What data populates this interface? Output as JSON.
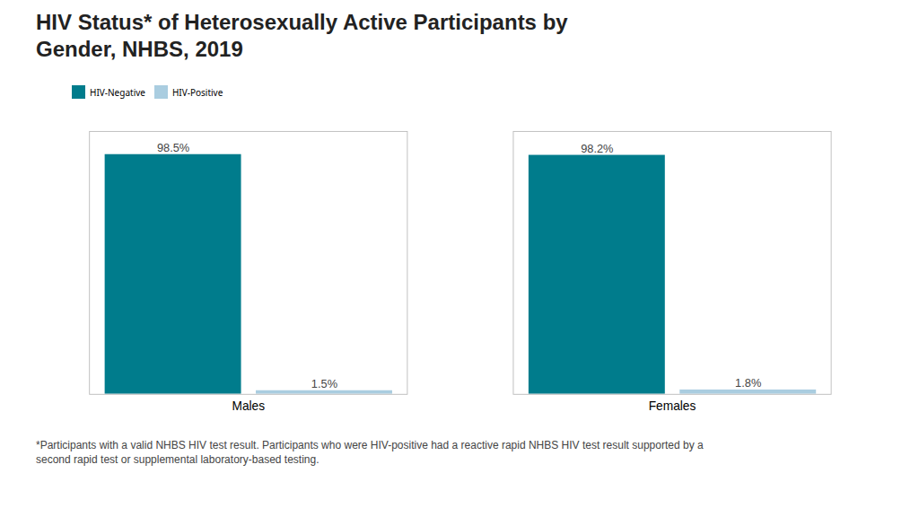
{
  "chart_data": {
    "type": "bar",
    "title": "HIV Status* of Heterosexually Active Participants by\nGender, NHBS, 2019",
    "categories": [
      "Males",
      "Females"
    ],
    "series": [
      {
        "name": "HIV-Negative",
        "color": "#007C8C",
        "values": [
          98.5,
          98.2
        ],
        "value_labels": [
          "98.5%",
          "98.2%"
        ]
      },
      {
        "name": "HIV-Positive",
        "color": "#AACDE0",
        "values": [
          1.5,
          1.8
        ],
        "value_labels": [
          "1.5%",
          "1.8%"
        ]
      }
    ],
    "ylim": [
      0,
      108
    ],
    "tick_labels": "x",
    "data_labels": true,
    "legend": "top",
    "annotations": [
      "*Participants with a valid NHBS HIV test result. Participants who were HIV-positive had a reactive rapid NHBS HIV test result supported by a\nsecond rapid test or supplemental laboratory-based testing."
    ]
  }
}
